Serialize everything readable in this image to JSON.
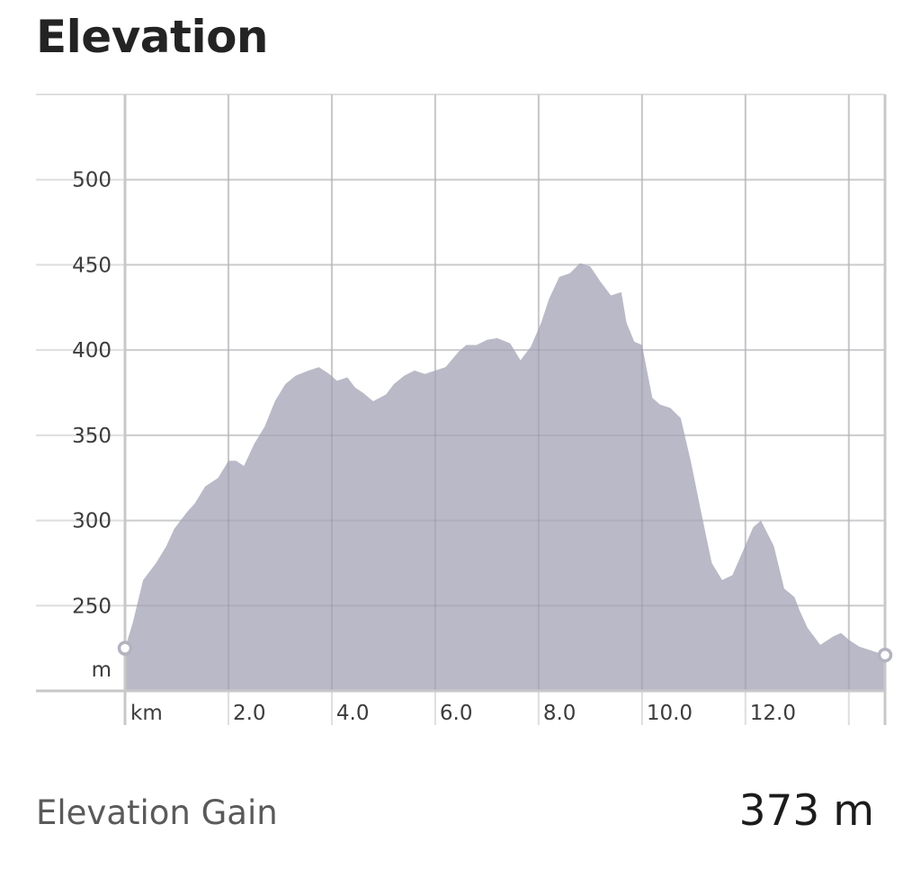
{
  "header": {
    "title": "Elevation"
  },
  "summary": {
    "label": "Elevation Gain",
    "value": "373 m"
  },
  "colors": {
    "fill": "#b9b9c7",
    "grid": "#dedede",
    "axis": "#c8c8c8",
    "marker": "#b3b3c0"
  },
  "chart_data": {
    "type": "area",
    "x_unit_label": "km",
    "y_unit_label": "m",
    "x_ticks": [
      "2.0",
      "4.0",
      "6.0",
      "8.0",
      "10.0",
      "12.0"
    ],
    "y_ticks": [
      "250",
      "300",
      "350",
      "400",
      "450",
      "500"
    ],
    "xlim": [
      0,
      14.7
    ],
    "ylim": [
      200,
      550
    ],
    "grid": true,
    "series": [
      {
        "x": [
          0,
          0.15,
          0.35,
          0.6,
          0.8,
          0.95,
          1.2,
          1.35,
          1.55,
          1.8,
          2.0,
          2.15,
          2.3,
          2.5,
          2.7,
          2.9,
          3.1,
          3.3,
          3.55,
          3.75,
          3.95,
          4.1,
          4.3,
          4.45,
          4.6,
          4.8,
          5.05,
          5.2,
          5.4,
          5.6,
          5.8,
          6.0,
          6.2,
          6.45,
          6.6,
          6.8,
          7.0,
          7.2,
          7.45,
          7.65,
          7.85,
          8.05,
          8.2,
          8.4,
          8.6,
          8.8,
          9.0,
          9.2,
          9.4,
          9.6,
          9.7,
          9.85,
          10.0,
          10.2,
          10.35,
          10.55,
          10.75,
          10.95,
          11.15,
          11.35,
          11.55,
          11.75,
          11.95,
          12.15,
          12.3,
          12.55,
          12.75,
          12.95,
          13.05,
          13.2,
          13.45,
          13.7,
          13.85,
          14.0,
          14.2,
          14.4,
          14.7
        ],
        "y": [
          225,
          240,
          265,
          275,
          285,
          295,
          305,
          310,
          320,
          325,
          335,
          335,
          332,
          345,
          355,
          370,
          380,
          385,
          388,
          390,
          386,
          382,
          384,
          378,
          375,
          370,
          374,
          380,
          385,
          388,
          386,
          388,
          390,
          399,
          403,
          403,
          406,
          407,
          404,
          394,
          402,
          416,
          430,
          443,
          445,
          451,
          449,
          440,
          432,
          434,
          416,
          405,
          403,
          372,
          368,
          366,
          360,
          334,
          304,
          275,
          265,
          268,
          282,
          296,
          300,
          285,
          260,
          255,
          247,
          237,
          227,
          232,
          234,
          230,
          226,
          224,
          221
        ]
      }
    ]
  }
}
